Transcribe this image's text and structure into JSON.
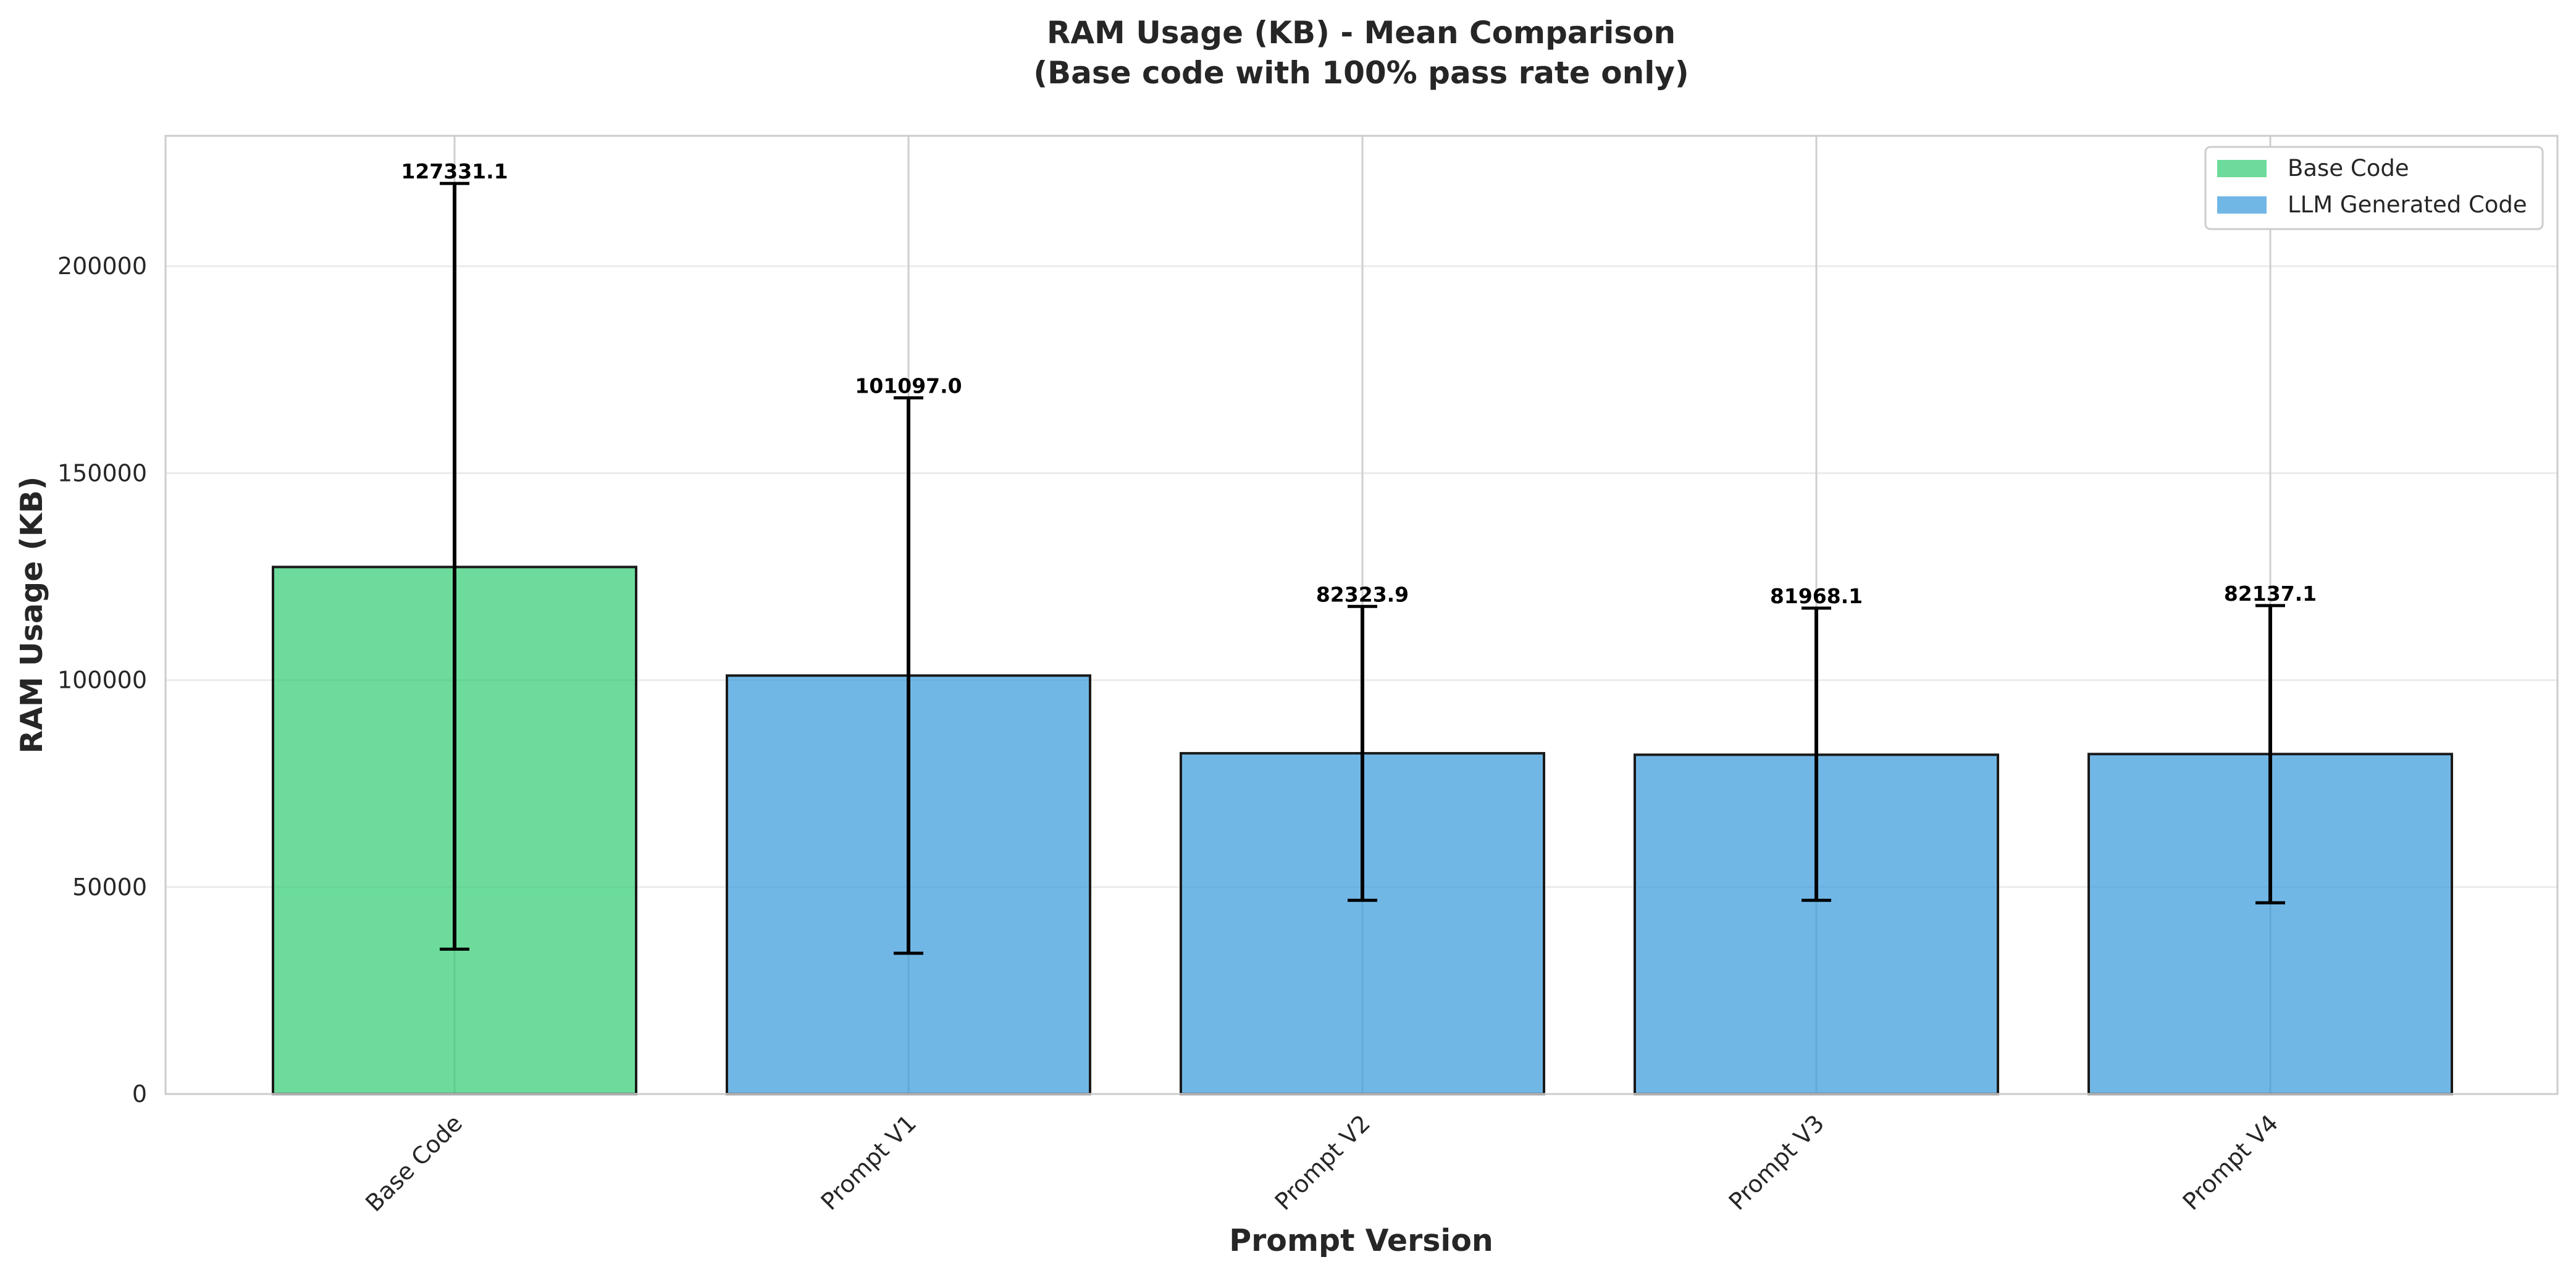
{
  "chart_data": {
    "type": "bar",
    "title": "RAM Usage (KB) - Mean Comparison",
    "subtitle": "(Base code with 100% pass rate only)",
    "xlabel": "Prompt Version",
    "ylabel": "RAM Usage (KB)",
    "categories": [
      "Base Code",
      "Prompt V1",
      "Prompt V2",
      "Prompt V3",
      "Prompt V4"
    ],
    "values": [
      127331.1,
      101097.0,
      82323.9,
      81968.1,
      82137.1
    ],
    "value_labels": [
      "127331.1",
      "101097.0",
      "82323.9",
      "81968.1",
      "82137.1"
    ],
    "error_low": [
      35000,
      34000,
      46800,
      46800,
      46200
    ],
    "error_high": [
      220000,
      168200,
      117800,
      117400,
      118000
    ],
    "series_group": [
      "Base Code",
      "LLM Generated Code",
      "LLM Generated Code",
      "LLM Generated Code",
      "LLM Generated Code"
    ],
    "ylim": [
      0,
      231500
    ],
    "yticks": [
      0,
      50000,
      100000,
      150000,
      200000
    ],
    "ytick_labels": [
      "0",
      "50000",
      "100000",
      "150000",
      "200000"
    ],
    "grid": true,
    "legend": {
      "placement": "top-right",
      "entries": [
        {
          "label": "Base Code",
          "color": "#2ecc71"
        },
        {
          "label": "LLM Generated Code",
          "color": "#3498db"
        }
      ]
    },
    "colors": {
      "base": "#2ecc71",
      "llm": "#3498db",
      "bar_edge": "#1a1a1a",
      "error_bar": "#000000",
      "grid": "#ebebeb"
    }
  }
}
